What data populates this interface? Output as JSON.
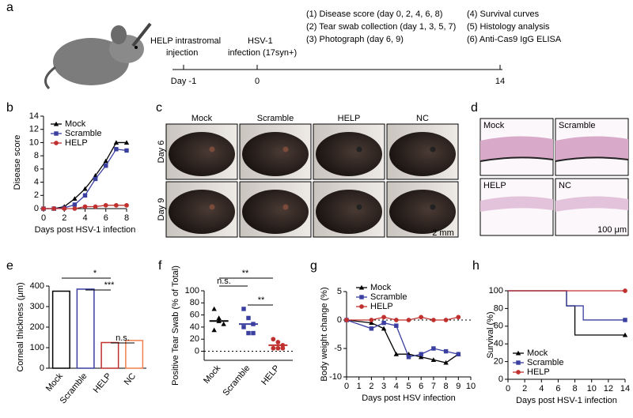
{
  "figure": {
    "a": {
      "panel": "a",
      "event_left": [
        "HELP intrastromal",
        "injection"
      ],
      "event_mid": [
        "HSV-1",
        "infection (17syn+)"
      ],
      "steps_left": [
        "(1) Disease score (day 0, 2, 4, 6, 8)",
        "(2) Tear swab collection (day 1, 3, 5, 7)",
        "(3) Photograph (day 6, 9)"
      ],
      "steps_right": [
        "(4) Survival curves",
        "(5) Histology analysis",
        "(6) Anti-Cas9 IgG ELISA"
      ],
      "timeline_labels": [
        "Day -1",
        "0",
        "14"
      ]
    },
    "c": {
      "panel": "c",
      "columns": [
        "Mock",
        "Scramble",
        "HELP",
        "NC"
      ],
      "rows": [
        "Day 6",
        "Day 9"
      ],
      "scale": "2 mm"
    },
    "d": {
      "panel": "d",
      "labels": [
        "Mock",
        "Scramble",
        "HELP",
        "NC"
      ],
      "scale": "100 μm"
    }
  },
  "chart_data": [
    {
      "type": "line",
      "panel": "b",
      "ylabel": "Disease score",
      "xlabel": "Days post HSV-1 infection",
      "x": [
        0,
        1,
        2,
        3,
        4,
        5,
        6,
        7,
        8
      ],
      "xlim": [
        0,
        8
      ],
      "xticks": [
        0,
        2,
        4,
        6,
        8
      ],
      "ylim": [
        0,
        14
      ],
      "yticks": [
        0,
        2,
        4,
        6,
        8,
        10,
        12,
        14
      ],
      "zero_line": true,
      "series": [
        {
          "name": "Mock",
          "color": "#000000",
          "values": [
            0,
            0,
            0.3,
            1.5,
            3,
            5,
            7.2,
            10,
            10
          ]
        },
        {
          "name": "Scramble",
          "color": "#3a3fa0",
          "values": [
            0,
            0,
            0.1,
            0.6,
            2,
            4.5,
            6.5,
            9,
            8.8
          ]
        },
        {
          "name": "HELP",
          "color": "#c0302f",
          "values": [
            0,
            0,
            0,
            0,
            0.3,
            0.3,
            0.5,
            0.5,
            0.5
          ]
        }
      ]
    },
    {
      "type": "bar",
      "panel": "e",
      "ylabel": "Corneal thickness (μm)",
      "categories": [
        "Mock",
        "Scramble",
        "HELP",
        "NC"
      ],
      "values": [
        375,
        385,
        125,
        135
      ],
      "colors": [
        "#000000",
        "#3a3fa0",
        "#c0302f",
        "#f07f4f"
      ],
      "ylim": [
        0,
        400
      ],
      "yticks": [
        0,
        100,
        200,
        300,
        400
      ],
      "annotations": [
        "*",
        "***",
        "n.s."
      ]
    },
    {
      "type": "dot",
      "panel": "f",
      "ylabel": "Positive Tear Swab (% of Total)",
      "categories": [
        "Mock",
        "Scramble",
        "HELP"
      ],
      "values": [
        50,
        45,
        10
      ],
      "points": [
        [
          70,
          50,
          45,
          35,
          55
        ],
        [
          70,
          55,
          45,
          40,
          30,
          30
        ],
        [
          20,
          15,
          10,
          5,
          5,
          5
        ]
      ],
      "colors": [
        "#000000",
        "#3a3fa0",
        "#c0302f"
      ],
      "ylim": [
        -15,
        100
      ],
      "yticks": [
        0,
        20,
        40,
        60,
        80,
        100
      ],
      "zero_line": true,
      "annotations": [
        "n.s.",
        "**",
        "**"
      ]
    },
    {
      "type": "line",
      "panel": "g",
      "ylabel": "Body weight change (%)",
      "xlabel": "Days post HSV infection",
      "x": [
        0,
        2,
        3,
        4,
        5,
        6,
        7,
        8,
        9
      ],
      "xlim": [
        0,
        10
      ],
      "xticks": [
        0,
        1,
        2,
        3,
        4,
        5,
        6,
        7,
        8,
        9,
        10
      ],
      "ylim": [
        -10,
        5
      ],
      "yticks": [
        -10,
        -5,
        0,
        5
      ],
      "zero_line": true,
      "series": [
        {
          "name": "Mock",
          "color": "#000000",
          "values": [
            0,
            -0.5,
            -1.5,
            -6,
            -6,
            -6.5,
            -7,
            -7.5,
            -6
          ]
        },
        {
          "name": "Scramble",
          "color": "#3a3fa0",
          "values": [
            0,
            -1.5,
            -0.5,
            -1,
            -6.5,
            -6,
            -5,
            -5.5,
            -6
          ]
        },
        {
          "name": "HELP",
          "color": "#c0302f",
          "values": [
            0,
            0,
            0.5,
            0,
            0,
            0.5,
            0,
            0,
            0.5
          ]
        }
      ]
    },
    {
      "type": "step",
      "panel": "h",
      "ylabel": "Survival (%)",
      "xlabel": "Days post HSV-1 infection",
      "x": [
        0,
        7,
        8,
        9,
        14
      ],
      "xlim": [
        0,
        14
      ],
      "xticks": [
        0,
        2,
        4,
        6,
        8,
        10,
        12,
        14
      ],
      "ylim": [
        0,
        100
      ],
      "yticks": [
        0,
        20,
        40,
        60,
        80,
        100
      ],
      "series": [
        {
          "name": "Mock",
          "color": "#000000",
          "values": [
            100,
            83,
            50,
            50,
            50
          ]
        },
        {
          "name": "Scramble",
          "color": "#3a3fa0",
          "values": [
            100,
            83,
            83,
            67,
            67
          ]
        },
        {
          "name": "HELP",
          "color": "#c0302f",
          "values": [
            100,
            100,
            100,
            100,
            100
          ]
        }
      ]
    }
  ]
}
